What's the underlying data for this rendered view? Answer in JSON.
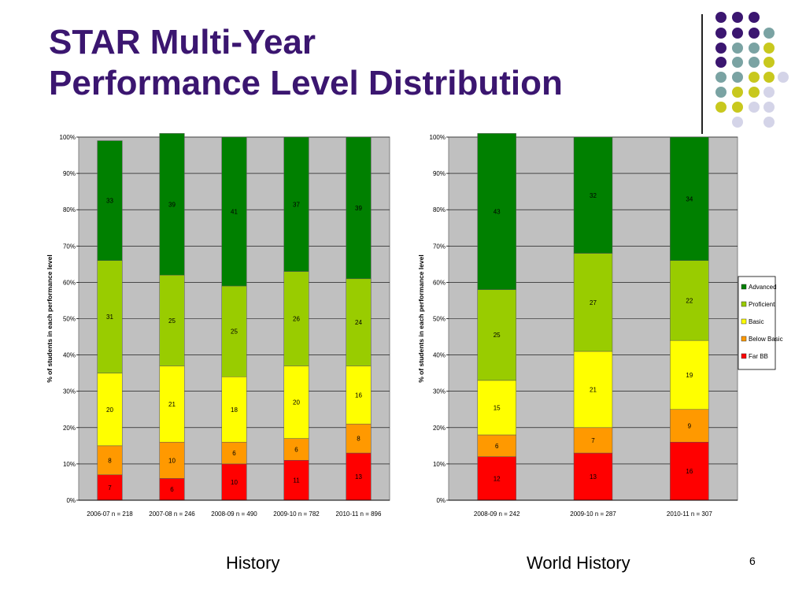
{
  "slide": {
    "title_line1": "STAR Multi-Year",
    "title_line2": "Performance Level Distribution",
    "page_number": "6",
    "title_color": "#3b1670"
  },
  "decor": {
    "dot_colors": [
      "#3b1670",
      "#7aa3a3",
      "#c8c81e",
      "#d4d4e8"
    ]
  },
  "legend": {
    "items": [
      {
        "label": "Advanced",
        "color": "#008000"
      },
      {
        "label": "Proficient",
        "color": "#99cc00"
      },
      {
        "label": "Basic",
        "color": "#ffff00"
      },
      {
        "label": "Below  Basic",
        "color": "#ff9900"
      },
      {
        "label": "Far BB",
        "color": "#ff0000"
      }
    ]
  },
  "chart_data": [
    {
      "type": "bar",
      "stacked": true,
      "caption": "History",
      "ylabel": "% of students in each performance level",
      "ylim": [
        0,
        100
      ],
      "yticks": [
        "0%",
        "10%",
        "20%",
        "30%",
        "40%",
        "50%",
        "60%",
        "70%",
        "80%",
        "90%",
        "100%"
      ],
      "categories": [
        "2006-07 n = 218",
        "2007-08 n = 246",
        "2008-09 n = 490",
        "2009-10 n = 782",
        "2010-11 n = 896"
      ],
      "series": [
        {
          "name": "Far BB",
          "color": "#ff0000",
          "values": [
            7,
            6,
            10,
            11,
            13
          ]
        },
        {
          "name": "Below  Basic",
          "color": "#ff9900",
          "values": [
            8,
            10,
            6,
            6,
            8
          ]
        },
        {
          "name": "Basic",
          "color": "#ffff00",
          "values": [
            20,
            21,
            18,
            20,
            16
          ]
        },
        {
          "name": "Proficient",
          "color": "#99cc00",
          "values": [
            31,
            25,
            25,
            26,
            24
          ]
        },
        {
          "name": "Advanced",
          "color": "#008000",
          "values": [
            33,
            39,
            41,
            37,
            39
          ]
        }
      ],
      "grid": true,
      "plot_background": "#c0c0c0"
    },
    {
      "type": "bar",
      "stacked": true,
      "caption": "World History",
      "ylabel": "% of students in each performance level",
      "ylim": [
        0,
        100
      ],
      "yticks": [
        "0%",
        "10%",
        "20%",
        "30%",
        "40%",
        "50%",
        "60%",
        "70%",
        "80%",
        "90%",
        "100%"
      ],
      "categories": [
        "2008-09 n = 242",
        "2009-10 n = 287",
        "2010-11 n = 307"
      ],
      "series": [
        {
          "name": "Far BB",
          "color": "#ff0000",
          "values": [
            12,
            13,
            16
          ]
        },
        {
          "name": "Below  Basic",
          "color": "#ff9900",
          "values": [
            6,
            7,
            9
          ]
        },
        {
          "name": "Basic",
          "color": "#ffff00",
          "values": [
            15,
            21,
            19
          ]
        },
        {
          "name": "Proficient",
          "color": "#99cc00",
          "values": [
            25,
            27,
            22
          ]
        },
        {
          "name": "Advanced",
          "color": "#008000",
          "values": [
            43,
            32,
            34
          ]
        }
      ],
      "grid": true,
      "legend_position": "right",
      "plot_background": "#c0c0c0"
    }
  ]
}
